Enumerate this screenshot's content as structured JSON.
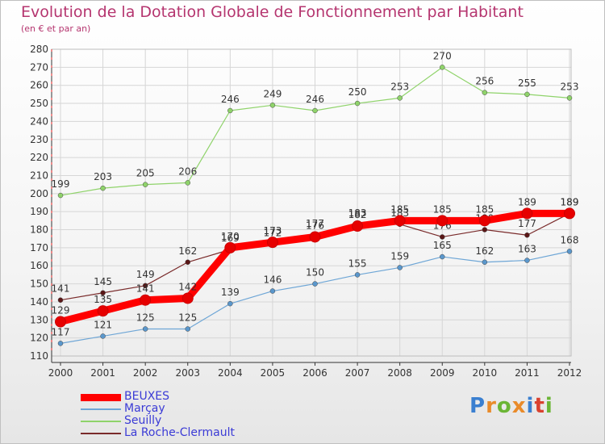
{
  "title": "Evolution de la Dotation Globale de Fonctionnement par Habitant",
  "subtitle": "(en € et par an)",
  "logo": {
    "text": "Proxiti",
    "letters": [
      {
        "ch": "P",
        "color": "#3a7fd0"
      },
      {
        "ch": "r",
        "color": "#e98b2a"
      },
      {
        "ch": "o",
        "color": "#6bb535"
      },
      {
        "ch": "x",
        "color": "#e98b2a"
      },
      {
        "ch": "i",
        "color": "#3a7fd0"
      },
      {
        "ch": "t",
        "color": "#d9412f"
      },
      {
        "ch": "i",
        "color": "#6bb535"
      }
    ]
  },
  "chart_data": {
    "type": "line",
    "title": "Evolution de la Dotation Globale de Fonctionnement par Habitant",
    "subtitle": "(en € et par an)",
    "xlabel": "",
    "ylabel": "",
    "x": [
      "2000",
      "2001",
      "2002",
      "2003",
      "2004",
      "2005",
      "2006",
      "2007",
      "2008",
      "2009",
      "2010",
      "2011",
      "2012"
    ],
    "ylim": [
      110,
      280
    ],
    "yticks": [
      110,
      120,
      130,
      140,
      150,
      160,
      170,
      180,
      190,
      200,
      210,
      220,
      230,
      240,
      250,
      260,
      270,
      280
    ],
    "grid": true,
    "legend_position": "bottom-left",
    "series": [
      {
        "name": "Seuilly",
        "color": "#8fd36a",
        "stroke": "#8fd36a",
        "dot": "#8fd36a",
        "values": [
          199,
          203,
          205,
          206,
          246,
          249,
          246,
          250,
          253,
          270,
          256,
          255,
          253
        ]
      },
      {
        "name": "Marçay",
        "color": "#6ea6d6",
        "stroke": "#6ea6d6",
        "dot": "#5a97cc",
        "values": [
          117,
          121,
          125,
          125,
          139,
          146,
          150,
          155,
          159,
          165,
          162,
          163,
          168
        ]
      },
      {
        "name": "La Roche-Clermault",
        "color": "#7a2b2b",
        "stroke": "#7a2b2b",
        "dot": "#5a1616",
        "values": [
          141,
          145,
          149,
          162,
          169,
          172,
          177,
          183,
          183,
          176,
          180,
          177,
          189
        ]
      },
      {
        "name": "BEUXES",
        "color": "#ff0000",
        "stroke": "#ff0000",
        "dot": "#e60000",
        "values": [
          129,
          135,
          141,
          142,
          170,
          173,
          176,
          182,
          185,
          185,
          185,
          189,
          189
        ]
      }
    ]
  }
}
